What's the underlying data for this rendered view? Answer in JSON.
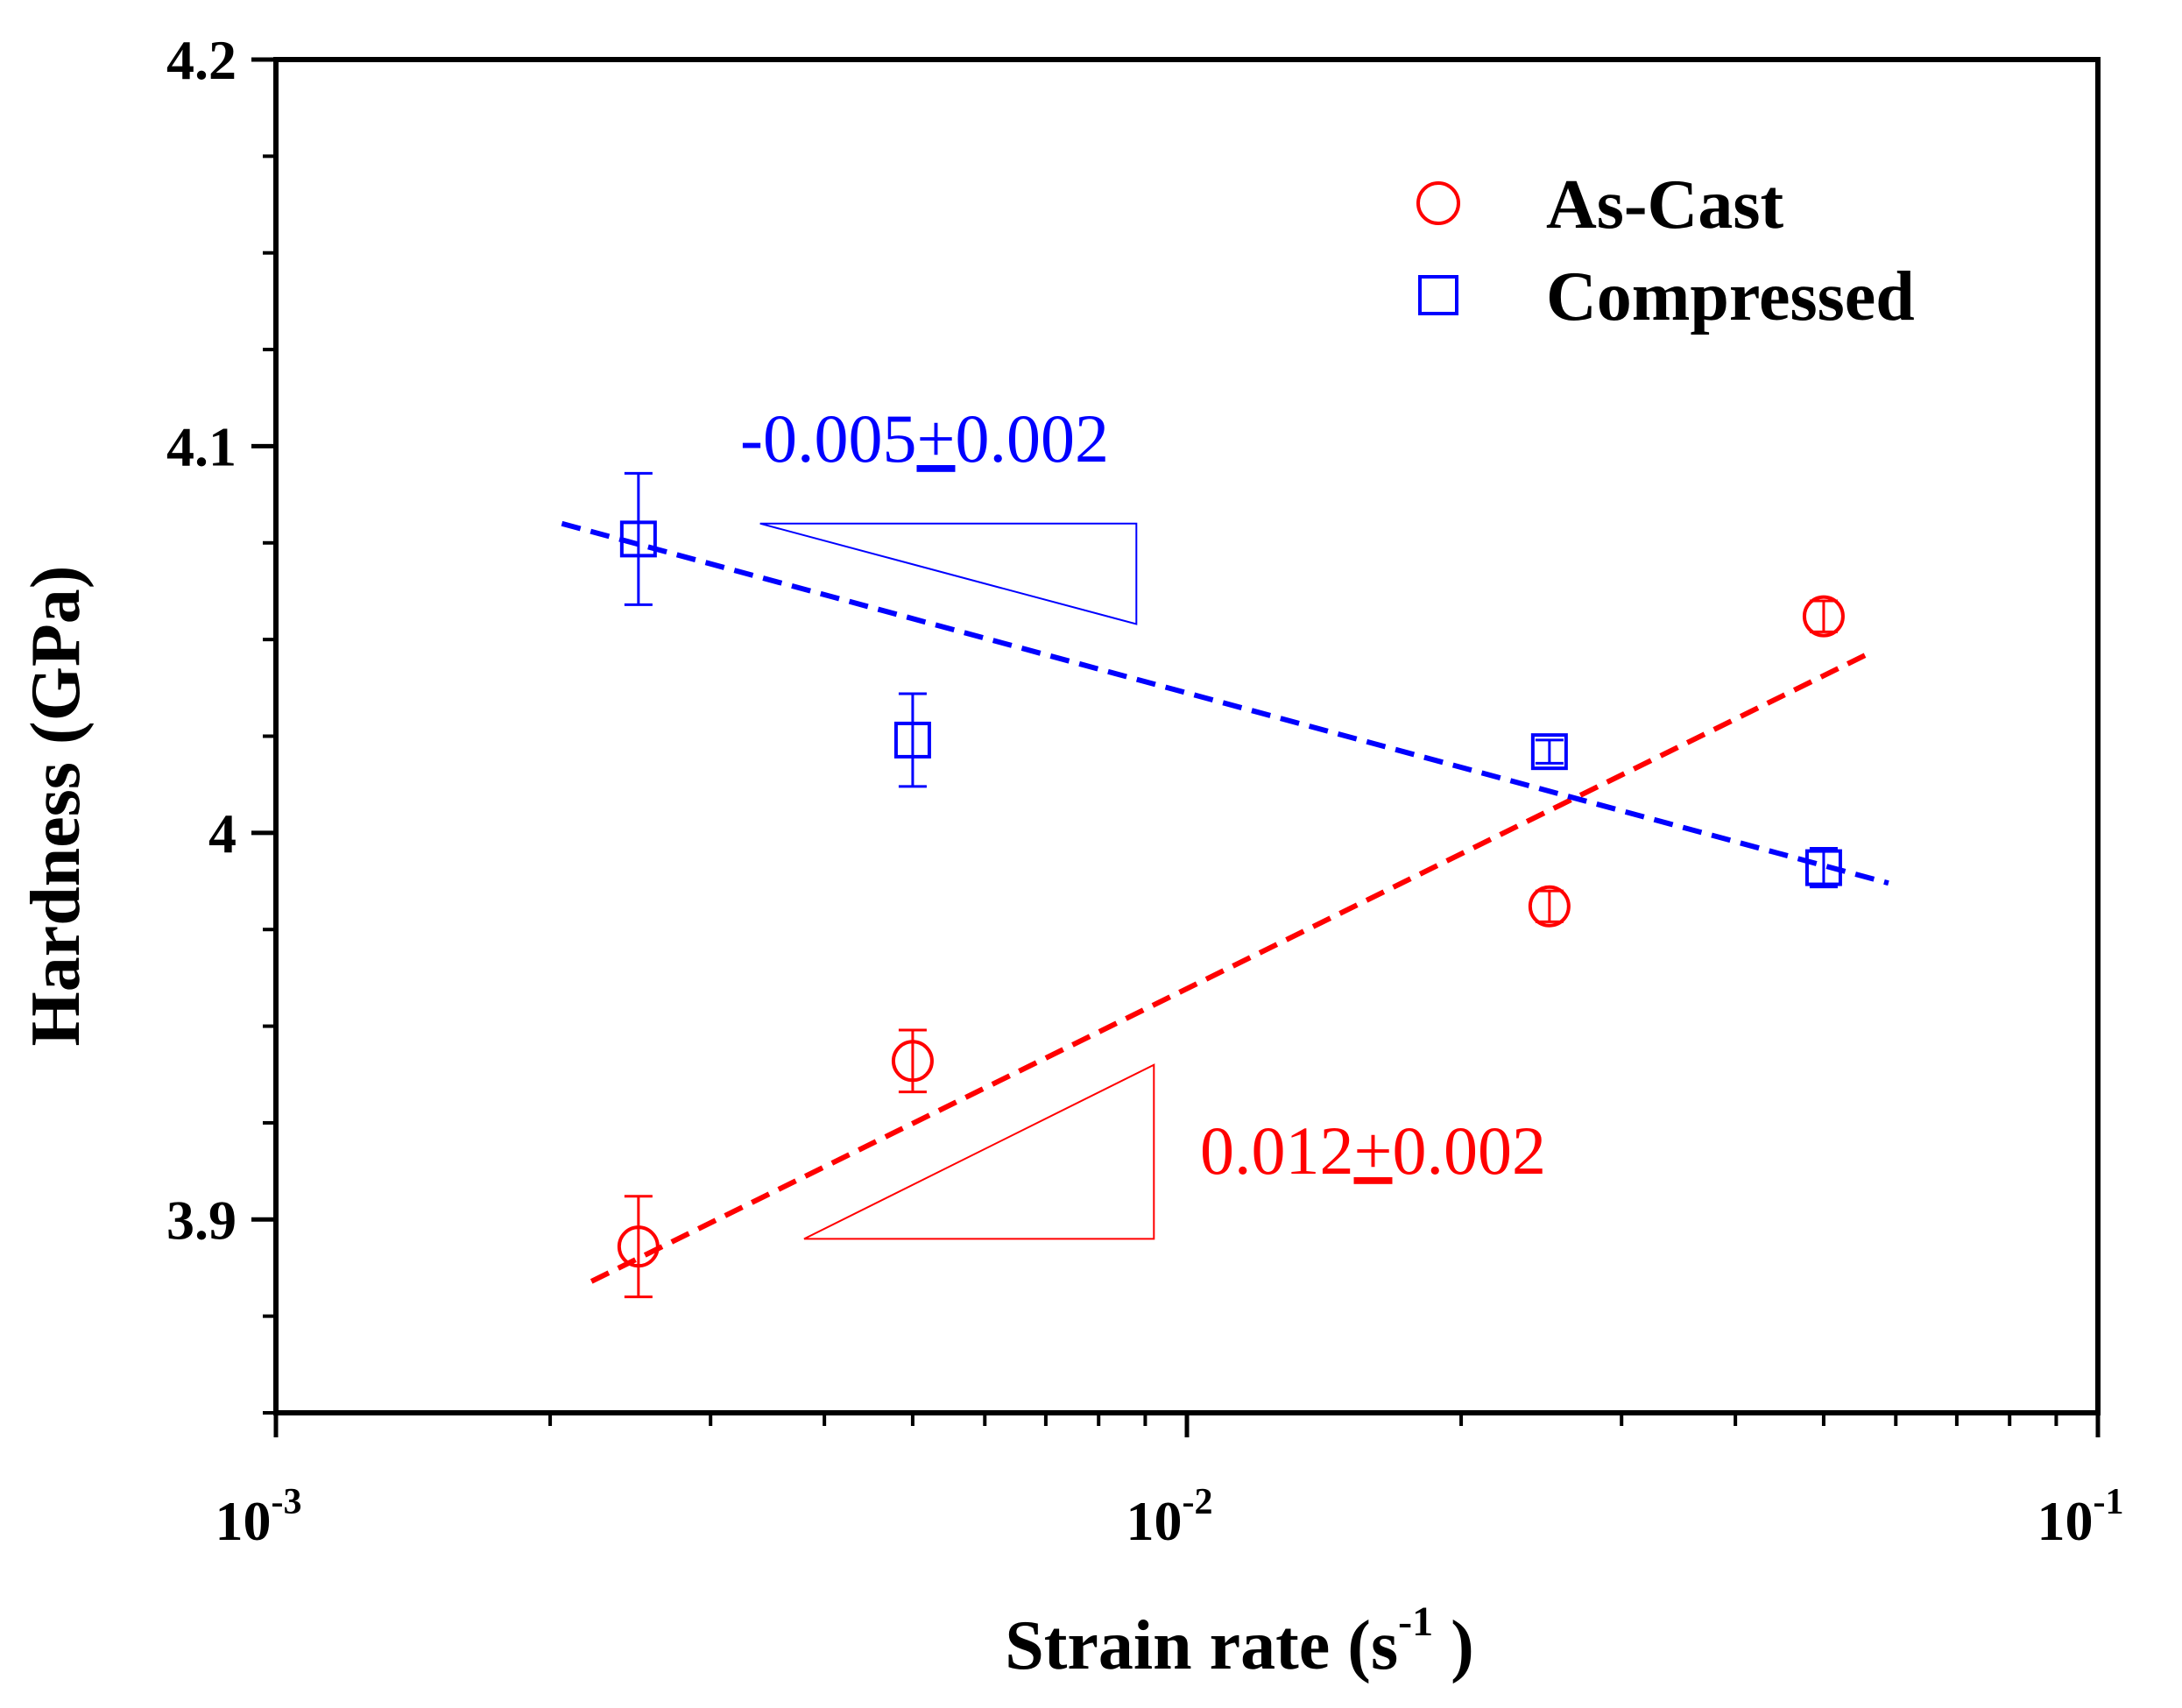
{
  "chart_data": {
    "type": "scatter",
    "title": "",
    "xlabel_main": "Strain rate (s",
    "xlabel_sup": "-1",
    "xlabel_close": " )",
    "ylabel": "Hardness (GPa)",
    "xscale": "log",
    "xlim": [
      0.001,
      0.1
    ],
    "ylim": [
      3.85,
      4.2
    ],
    "x_ticks": [
      {
        "value": 0.001,
        "base": "10",
        "exp": "-3"
      },
      {
        "value": 0.01,
        "base": "10",
        "exp": "-2"
      },
      {
        "value": 0.1,
        "base": "10",
        "exp": "-1"
      }
    ],
    "y_ticks": [
      {
        "value": 3.9,
        "label": "3.9"
      },
      {
        "value": 4.0,
        "label": "4"
      },
      {
        "value": 4.1,
        "label": "4.1"
      },
      {
        "value": 4.2,
        "label": "4.2"
      }
    ],
    "y_minor_step": 0.025,
    "legend_position": "top-right",
    "series": [
      {
        "name": "As-Cast",
        "marker": "circle",
        "color": "#ff0000",
        "points": [
          {
            "x": 0.0025,
            "y": 3.893,
            "err": 0.013
          },
          {
            "x": 0.005,
            "y": 3.941,
            "err": 0.008
          },
          {
            "x": 0.025,
            "y": 3.981,
            "err": 0.004
          },
          {
            "x": 0.05,
            "y": 4.056,
            "err": 0.004
          }
        ],
        "fit": {
          "x0": 0.00222,
          "y0": 3.884,
          "x1": 0.0556,
          "y1": 4.046
        },
        "slope_label": {
          "main": "0.012",
          "pm": "+",
          "rest": "0.002"
        },
        "slope_triangle": [
          [
            0.0038,
            3.895
          ],
          [
            0.0092,
            3.895
          ],
          [
            0.0092,
            3.94
          ]
        ]
      },
      {
        "name": "Compressed",
        "marker": "square",
        "color": "#0000ff",
        "points": [
          {
            "x": 0.0025,
            "y": 4.076,
            "err": 0.017
          },
          {
            "x": 0.005,
            "y": 4.024,
            "err": 0.012
          },
          {
            "x": 0.025,
            "y": 4.021,
            "err": 0.003
          },
          {
            "x": 0.05,
            "y": 3.991,
            "err": 0.005
          }
        ],
        "fit": {
          "x0": 0.00206,
          "y0": 4.08,
          "x1": 0.0589,
          "y1": 3.987
        },
        "slope_label": {
          "main": "-0.005",
          "pm": "+",
          "rest": "0.002"
        },
        "slope_triangle": [
          [
            0.0034,
            4.08
          ],
          [
            0.0088,
            4.08
          ],
          [
            0.0088,
            4.054
          ]
        ]
      }
    ]
  }
}
